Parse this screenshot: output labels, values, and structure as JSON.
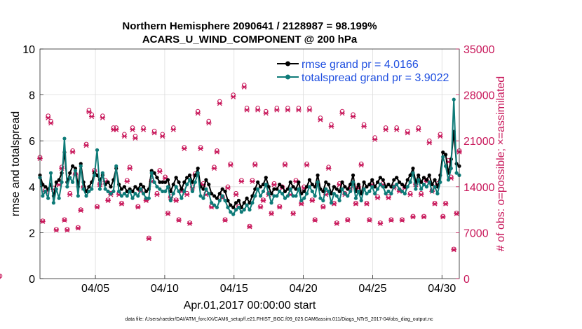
{
  "chart_data": {
    "type": "line",
    "title": "Northern Hemisphere 2090641 / 2128987 = 98.199%",
    "subtitle": "ACARS_U_WIND_COMPONENT @ 200 hPa",
    "xlabel": "Apr.01,2017 00:00:00 start",
    "ylabel": "rmse and totalspread",
    "ylabel_right": "# of obs: o=possible; ×=assimilated",
    "footnote": "data file: /Users/raeder/DAI/ATM_forcXX/CAM6_setup/f.e21.FHIST_BGC.f09_025.CAM6assim.011/Diags_NTrS_2017-04/obs_diag_output.nc",
    "xlim": [
      1.0,
      31.25
    ],
    "ylim": [
      0,
      10
    ],
    "ylim_right": [
      0,
      35000
    ],
    "x_ticks": [
      5,
      10,
      15,
      20,
      25,
      30
    ],
    "x_tick_labels": [
      "04/05",
      "04/10",
      "04/15",
      "04/20",
      "04/25",
      "04/30"
    ],
    "y_ticks": [
      0,
      2,
      4,
      6,
      8,
      10
    ],
    "y_tick_labels": [
      "0",
      "2",
      "4",
      "6",
      "8",
      "10"
    ],
    "y_right_ticks": [
      0,
      7000,
      14000,
      21000,
      28000,
      35000
    ],
    "y_right_tick_labels": [
      "0",
      "7000",
      "14000",
      "21000",
      "28000",
      "35000"
    ],
    "legend_position": "top-right",
    "series": [
      {
        "name": "rmse grand pr = 4.0166",
        "color": "#000000",
        "marker": "filled-circle",
        "values": [
          4.5,
          4.1,
          4.0,
          3.9,
          4.1,
          3.6,
          4.2,
          4.3,
          4.6,
          5.5,
          4.2,
          4.6,
          4.9,
          4.8,
          4.0,
          5.0,
          4.2,
          3.8,
          4.0,
          4.2,
          4.6,
          4.5,
          4.3,
          4.5,
          4.1,
          4.2,
          4.0,
          4.3,
          4.8,
          4.1,
          3.9,
          4.0,
          3.8,
          3.9,
          3.8,
          4.0,
          3.9,
          4.1,
          4.0,
          3.8,
          3.9,
          4.7,
          4.6,
          4.4,
          4.2,
          4.2,
          4.2,
          4.3,
          3.8,
          4.1,
          4.4,
          4.2,
          3.9,
          4.2,
          4.4,
          4.5,
          4.2,
          4.5,
          4.8,
          4.0,
          3.9,
          4.3,
          4.1,
          3.7,
          3.6,
          3.5,
          3.7,
          3.9,
          3.8,
          3.4,
          3.2,
          3.1,
          3.3,
          3.4,
          3.1,
          3.3,
          3.5,
          3.3,
          3.6,
          3.9,
          4.2,
          4.0,
          4.1,
          4.4,
          4.0,
          3.7,
          3.9,
          3.9,
          4.1,
          4.0,
          3.8,
          3.9,
          4.2,
          4.0,
          3.9,
          4.2,
          3.7,
          3.8,
          4.0,
          4.3,
          4.1,
          4.0,
          4.5,
          3.9,
          3.8,
          4.2,
          4.1,
          3.7,
          4.0,
          3.9,
          3.8,
          4.2,
          4.0,
          3.9,
          4.1,
          4.5,
          3.8,
          4.1,
          3.7,
          4.2,
          4.0,
          4.1,
          4.3,
          4.0,
          4.2,
          4.4,
          4.3,
          4.0,
          4.1,
          4.0,
          4.3,
          4.4,
          4.2,
          4.1,
          4.0,
          4.3,
          4.5,
          4.8,
          4.2,
          4.5,
          4.2,
          4.4,
          4.3,
          4.5,
          4.1,
          4.3,
          4.0,
          4.5,
          5.5,
          5.4,
          4.6,
          5.2,
          6.4,
          5.0,
          4.9
        ]
      },
      {
        "name": "totalspread grand pr = 3.9022",
        "color": "#0e7b78",
        "marker": "filled-circle",
        "values": [
          4.4,
          3.6,
          3.8,
          3.5,
          4.6,
          3.3,
          3.9,
          3.5,
          4.2,
          6.1,
          4.0,
          4.4,
          4.2,
          4.7,
          3.6,
          4.9,
          3.9,
          3.6,
          3.8,
          3.9,
          4.5,
          5.6,
          3.9,
          4.6,
          3.9,
          3.8,
          3.7,
          3.8,
          4.9,
          3.8,
          3.6,
          3.7,
          3.6,
          3.8,
          3.5,
          3.7,
          3.6,
          3.9,
          3.7,
          3.5,
          3.5,
          4.6,
          4.2,
          4.0,
          3.9,
          3.8,
          3.8,
          4.0,
          3.4,
          3.7,
          4.0,
          3.8,
          3.5,
          3.8,
          4.1,
          4.3,
          3.8,
          4.2,
          4.6,
          3.6,
          3.5,
          3.9,
          3.7,
          3.3,
          3.2,
          3.1,
          3.4,
          3.6,
          3.4,
          3.1,
          2.9,
          2.8,
          3.0,
          3.1,
          2.9,
          3.0,
          3.2,
          3.0,
          3.3,
          3.6,
          3.9,
          3.6,
          3.8,
          4.1,
          3.7,
          3.3,
          3.6,
          3.6,
          3.8,
          3.7,
          3.5,
          3.6,
          3.9,
          3.6,
          3.6,
          3.9,
          3.4,
          3.5,
          3.7,
          4.0,
          3.8,
          3.6,
          4.2,
          3.5,
          3.4,
          3.9,
          3.8,
          3.3,
          3.7,
          3.6,
          3.4,
          3.9,
          3.7,
          3.6,
          3.8,
          4.2,
          3.5,
          3.8,
          3.4,
          3.9,
          3.7,
          3.8,
          4.0,
          3.7,
          3.9,
          4.1,
          4.0,
          3.7,
          3.8,
          3.7,
          4.0,
          4.1,
          3.9,
          3.8,
          3.7,
          4.0,
          4.2,
          4.6,
          3.9,
          4.3,
          3.9,
          4.1,
          4.0,
          4.2,
          3.8,
          4.0,
          3.7,
          4.2,
          5.3,
          4.9,
          4.3,
          4.8,
          7.8,
          4.6,
          4.5
        ]
      },
      {
        "name": "# of obs possible",
        "axis": "right",
        "color": "#c8175a",
        "marker": "open-circle",
        "values": [
          18500,
          8800,
          13500,
          24800,
          24000,
          13800,
          7500,
          14500,
          17000,
          9000,
          7500,
          13000,
          19500,
          16000,
          7800,
          10500,
          14000,
          20500,
          25700,
          25000,
          16500,
          11000,
          14500,
          24800,
          15000,
          12000,
          13000,
          23000,
          23000,
          13000,
          11500,
          22000,
          15000,
          17000,
          23000,
          21700,
          11000,
          13500,
          23000,
          12000,
          6200,
          15000,
          22500,
          13000,
          16500,
          22000,
          15500,
          10000,
          12500,
          23000,
          12000,
          9000,
          13500,
          20000,
          13000,
          8500,
          14000,
          16000,
          25500,
          20000,
          14500,
          13000,
          24000,
          11000,
          17000,
          19500,
          27000,
          12500,
          9000,
          14000,
          17500,
          28000,
          13000,
          11000,
          15000,
          29500,
          26000,
          8000,
          15000,
          17500,
          26000,
          11000,
          12000,
          25500,
          13000,
          10000,
          14500,
          26000,
          11000,
          14000,
          17500,
          26000,
          13000,
          10000,
          15000,
          26000,
          11500,
          14000,
          17500,
          26000,
          12000,
          9000,
          14500,
          24500,
          11000,
          13000,
          17000,
          23500,
          11500,
          8500,
          14500,
          25500,
          13000,
          9000,
          14000,
          25000,
          11500,
          14000,
          17500,
          23500,
          11500,
          9000,
          14500,
          21500,
          12500,
          8500,
          14500,
          23000,
          12500,
          9000,
          14000,
          23000,
          13500,
          9000,
          14000,
          22500,
          13000,
          9500,
          14500,
          23000,
          13000,
          9500,
          15000,
          21000,
          13500,
          11500,
          14500,
          22000,
          9500,
          11500,
          18000,
          15500,
          4500,
          10000,
          19500,
          400
        ]
      },
      {
        "name": "# of obs assimilated",
        "axis": "right",
        "color": "#c8175a",
        "marker": "x",
        "values": [
          18300,
          8700,
          13300,
          24500,
          23700,
          13600,
          7400,
          14300,
          16800,
          8900,
          7400,
          12800,
          19300,
          15800,
          7700,
          10400,
          13800,
          20300,
          25400,
          24700,
          16300,
          10900,
          14300,
          24500,
          14800,
          11900,
          12800,
          22700,
          22700,
          12800,
          11400,
          21700,
          14800,
          16800,
          22700,
          21400,
          10900,
          13300,
          22700,
          11900,
          6100,
          14800,
          22200,
          12800,
          16300,
          21700,
          15300,
          9900,
          12300,
          22700,
          11900,
          8900,
          13300,
          19800,
          12800,
          8400,
          13800,
          15800,
          25200,
          19800,
          14300,
          12800,
          23700,
          10900,
          16800,
          19300,
          26700,
          12300,
          8900,
          13800,
          17300,
          27700,
          12800,
          10900,
          14800,
          29200,
          25700,
          7900,
          14800,
          17300,
          25700,
          10900,
          11900,
          25200,
          12800,
          9900,
          14300,
          25700,
          10900,
          13800,
          17300,
          25700,
          12800,
          9900,
          14800,
          25700,
          11400,
          13800,
          17300,
          25700,
          11900,
          8900,
          14300,
          24200,
          10900,
          12800,
          16800,
          23200,
          11400,
          8400,
          14300,
          25200,
          12800,
          8900,
          13800,
          24700,
          11400,
          13800,
          17300,
          23200,
          11400,
          8900,
          14300,
          21200,
          12300,
          8400,
          14300,
          22700,
          12300,
          8900,
          13800,
          22700,
          13300,
          8900,
          13800,
          22200,
          12800,
          9400,
          14300,
          22700,
          12800,
          9400,
          14800,
          20700,
          13300,
          11400,
          14300,
          21700,
          9400,
          11400,
          17800,
          15300,
          4400,
          9900,
          19300,
          300
        ]
      }
    ]
  }
}
